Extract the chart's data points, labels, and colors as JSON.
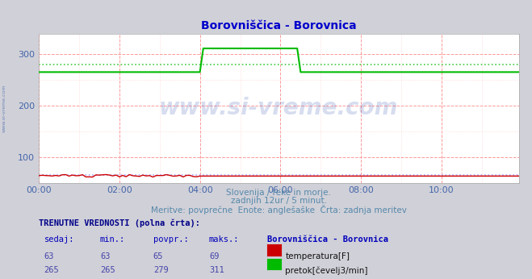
{
  "title": "Borovniščica - Borovnica",
  "title_color": "#0000cc",
  "background_color": "#d0d0d8",
  "plot_bg_color": "#ffffff",
  "grid_color_major": "#ff9999",
  "grid_color_minor": "#ffdddd",
  "tick_color": "#4466aa",
  "watermark_text": "www.si-vreme.com",
  "watermark_color": "#2244aa",
  "watermark_alpha": 0.18,
  "subtitle1": "Slovenija / reke in morje.",
  "subtitle2": "zadnjih 12ur / 5 minut.",
  "subtitle3": "Meritve: povprečne  Enote: anglešaške  Črta: zadnja meritev",
  "subtitle_color": "#5588aa",
  "xticklabels": [
    "00:00",
    "02:00",
    "04:00",
    "06:00",
    "08:00",
    "10:00"
  ],
  "xtick_pos": [
    0,
    24,
    48,
    72,
    96,
    120
  ],
  "xlim": [
    0,
    143
  ],
  "ylim": [
    50,
    340
  ],
  "yticks": [
    100,
    200,
    300
  ],
  "n_points": 144,
  "temp_value": 63.0,
  "temp_spike_start": 0,
  "temp_spike_end": 0,
  "temp_spike_val": 63.0,
  "flow_base": 265.0,
  "flow_spike_val": 311.0,
  "flow_spike_start": 48,
  "flow_spike_end": 78,
  "flow_avg_val": 279.0,
  "temp_avg_val": 65.0,
  "temp_color": "#cc0000",
  "flow_color": "#00bb00",
  "temp_avg_color": "#aaaaff",
  "flow_avg_color": "#44cc44",
  "temp_sed": 63,
  "temp_min": 63,
  "temp_povpr": 65,
  "temp_maks": 69,
  "flow_sed": 265,
  "flow_min": 265,
  "flow_povpr": 279,
  "flow_maks": 311,
  "table_header": "TRENUTNE VREDNOSTI (polna črta):",
  "table_header_color": "#000088",
  "col1": "sedaj:",
  "col2": "min.:",
  "col3": "povpr.:",
  "col4": "maks.:",
  "col5": "Borovniščica - Borovnica",
  "col_header_color": "#0000bb",
  "col_val_color": "#4444aa",
  "label_temp": "temperatura[F]",
  "label_flow": "pretok[čevelj3/min]",
  "label_color": "#111111",
  "left_watermark": "www.si-vreme.com",
  "left_watermark_color": "#4466aa"
}
